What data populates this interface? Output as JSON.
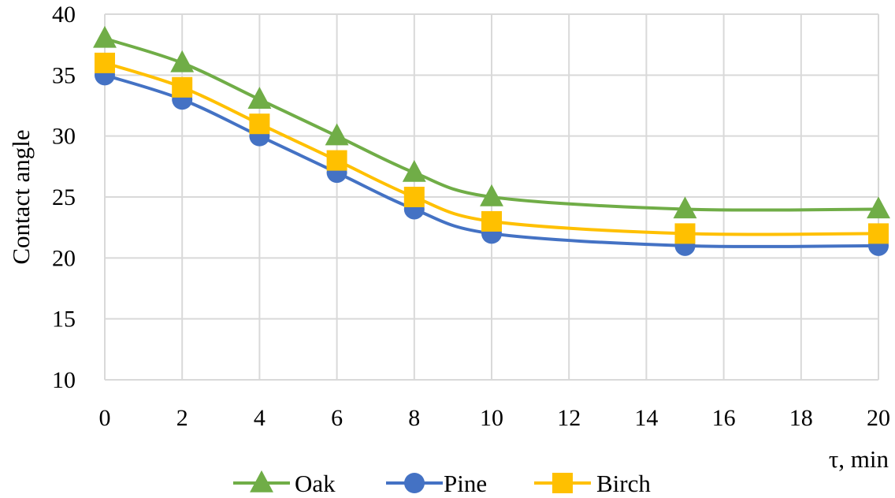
{
  "chart_data": {
    "type": "line",
    "title": "",
    "xlabel": "τ, min",
    "ylabel": "Contact  angle",
    "x": [
      0,
      2,
      4,
      6,
      8,
      10,
      15,
      20
    ],
    "xlim": [
      0,
      20
    ],
    "ylim": [
      10,
      40
    ],
    "x_ticks": [
      "0",
      "2",
      "4",
      "6",
      "8",
      "10",
      "12",
      "14",
      "16",
      "18",
      "20"
    ],
    "y_ticks": [
      "10",
      "15",
      "20",
      "25",
      "30",
      "35",
      "40"
    ],
    "grid": true,
    "legend_position": "bottom",
    "series": [
      {
        "name": "Oak",
        "values": [
          38,
          36,
          33,
          30,
          27,
          25,
          24,
          24
        ],
        "color": "#70ad47",
        "marker": "triangle"
      },
      {
        "name": "Pine",
        "values": [
          35,
          33,
          30,
          27,
          24,
          22,
          21,
          21
        ],
        "color": "#4472c4",
        "marker": "circle"
      },
      {
        "name": "Birch",
        "values": [
          36,
          34,
          31,
          28,
          25,
          23,
          22,
          22
        ],
        "color": "#ffc000",
        "marker": "square"
      }
    ]
  }
}
